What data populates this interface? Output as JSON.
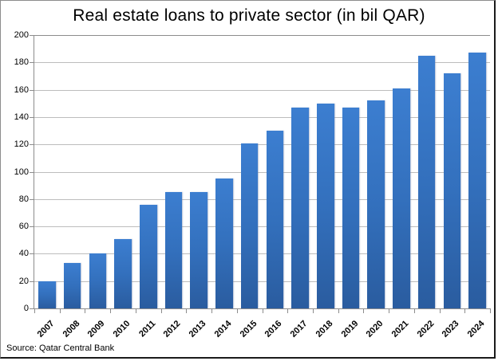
{
  "title": "Real estate loans to private sector (in bil QAR)",
  "source": "Source: Qatar Central Bank",
  "chart_data": {
    "type": "bar",
    "title": "Real estate loans to private sector (in bil QAR)",
    "xlabel": "",
    "ylabel": "",
    "categories": [
      "2007",
      "2008",
      "2009",
      "2010",
      "2011",
      "2012",
      "2013",
      "2014",
      "2015",
      "2016",
      "2017",
      "2018",
      "2019",
      "2020",
      "2021",
      "2022",
      "2023",
      "2024"
    ],
    "values": [
      20,
      33,
      40,
      51,
      76,
      85,
      85,
      95,
      121,
      130,
      147,
      150,
      147,
      152,
      161,
      185,
      172,
      187
    ],
    "ylim": [
      0,
      200
    ],
    "yticks": [
      "0",
      "20",
      "40",
      "60",
      "80",
      "100",
      "120",
      "140",
      "160",
      "180",
      "200"
    ],
    "grid": true,
    "legend": null,
    "bar_color": "#3a7bcc",
    "annotation": "Source: Qatar Central Bank"
  }
}
